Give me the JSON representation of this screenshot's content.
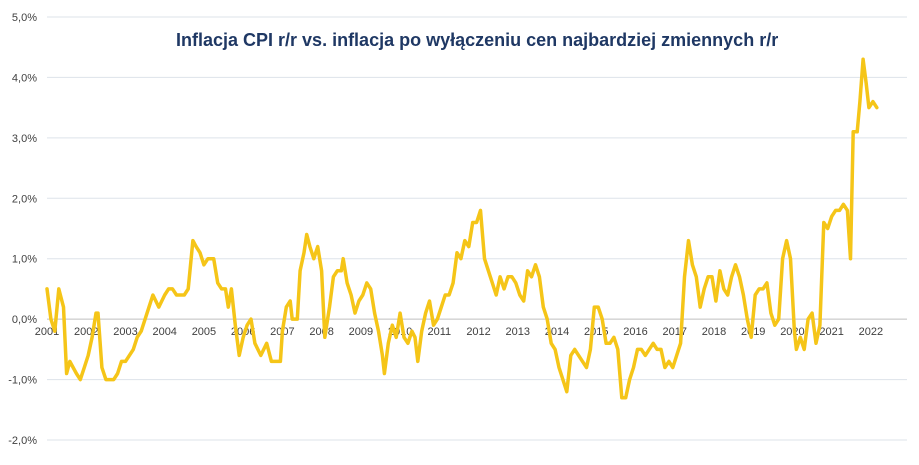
{
  "chart_data": {
    "type": "line",
    "title": "Inflacja CPI r/r vs. inflacja po wyłączeniu cen najbardziej  zmiennych r/r",
    "xlabel": "",
    "ylabel": "",
    "ylim": [
      -2.0,
      5.0
    ],
    "y_ticks": [
      -2.0,
      -1.0,
      0.0,
      1.0,
      2.0,
      3.0,
      4.0,
      5.0
    ],
    "y_tick_labels": [
      "-2,0%",
      "-1,0%",
      "0,0%",
      "1,0%",
      "2,0%",
      "3,0%",
      "4,0%",
      "5,0%"
    ],
    "x_range": [
      2001,
      2022.92
    ],
    "x_tick_labels": [
      "2001",
      "2002",
      "2003",
      "2004",
      "2005",
      "2006",
      "2007",
      "2008",
      "2009",
      "2010",
      "2011",
      "2012",
      "2013",
      "2014",
      "2015",
      "2016",
      "2017",
      "2018",
      "2019",
      "2020",
      "2021",
      "2022"
    ],
    "grid": true,
    "legend": "none",
    "line_color": "#f5c518",
    "series": [
      {
        "points": [
          [
            2001.0,
            0.5
          ],
          [
            2001.1,
            0.0
          ],
          [
            2001.2,
            -0.2
          ],
          [
            2001.3,
            0.5
          ],
          [
            2001.42,
            0.2
          ],
          [
            2001.5,
            -0.9
          ],
          [
            2001.58,
            -0.7
          ],
          [
            2001.75,
            -0.9
          ],
          [
            2001.85,
            -1.0
          ],
          [
            2001.95,
            -0.8
          ],
          [
            2002.05,
            -0.6
          ],
          [
            2002.15,
            -0.3
          ],
          [
            2002.25,
            0.1
          ],
          [
            2002.3,
            0.1
          ],
          [
            2002.4,
            -0.8
          ],
          [
            2002.5,
            -1.0
          ],
          [
            2002.6,
            -1.0
          ],
          [
            2002.7,
            -1.0
          ],
          [
            2002.8,
            -0.9
          ],
          [
            2002.9,
            -0.7
          ],
          [
            2003.0,
            -0.7
          ],
          [
            2003.1,
            -0.6
          ],
          [
            2003.2,
            -0.5
          ],
          [
            2003.3,
            -0.3
          ],
          [
            2003.4,
            -0.2
          ],
          [
            2003.5,
            0.0
          ],
          [
            2003.6,
            0.2
          ],
          [
            2003.7,
            0.4
          ],
          [
            2003.85,
            0.2
          ],
          [
            2004.0,
            0.4
          ],
          [
            2004.1,
            0.5
          ],
          [
            2004.2,
            0.5
          ],
          [
            2004.3,
            0.4
          ],
          [
            2004.4,
            0.4
          ],
          [
            2004.5,
            0.4
          ],
          [
            2004.6,
            0.5
          ],
          [
            2004.72,
            1.3
          ],
          [
            2004.8,
            1.2
          ],
          [
            2004.9,
            1.1
          ],
          [
            2005.0,
            0.9
          ],
          [
            2005.1,
            1.0
          ],
          [
            2005.2,
            1.0
          ],
          [
            2005.25,
            1.0
          ],
          [
            2005.35,
            0.6
          ],
          [
            2005.45,
            0.5
          ],
          [
            2005.55,
            0.5
          ],
          [
            2005.62,
            0.2
          ],
          [
            2005.7,
            0.5
          ],
          [
            2005.8,
            -0.1
          ],
          [
            2005.9,
            -0.6
          ],
          [
            2006.0,
            -0.3
          ],
          [
            2006.1,
            -0.1
          ],
          [
            2006.2,
            0.0
          ],
          [
            2006.3,
            -0.4
          ],
          [
            2006.45,
            -0.6
          ],
          [
            2006.6,
            -0.4
          ],
          [
            2006.72,
            -0.7
          ],
          [
            2006.85,
            -0.7
          ],
          [
            2006.95,
            -0.7
          ],
          [
            2007.0,
            -0.2
          ],
          [
            2007.1,
            0.2
          ],
          [
            2007.2,
            0.3
          ],
          [
            2007.25,
            0.0
          ],
          [
            2007.38,
            0.0
          ],
          [
            2007.45,
            0.8
          ],
          [
            2007.55,
            1.1
          ],
          [
            2007.62,
            1.4
          ],
          [
            2007.7,
            1.2
          ],
          [
            2007.8,
            1.0
          ],
          [
            2007.9,
            1.2
          ],
          [
            2008.0,
            0.8
          ],
          [
            2008.08,
            -0.3
          ],
          [
            2008.2,
            0.2
          ],
          [
            2008.3,
            0.7
          ],
          [
            2008.4,
            0.8
          ],
          [
            2008.5,
            0.8
          ],
          [
            2008.55,
            1.0
          ],
          [
            2008.65,
            0.6
          ],
          [
            2008.75,
            0.4
          ],
          [
            2008.85,
            0.1
          ],
          [
            2008.95,
            0.3
          ],
          [
            2009.05,
            0.4
          ],
          [
            2009.15,
            0.6
          ],
          [
            2009.25,
            0.5
          ],
          [
            2009.35,
            0.1
          ],
          [
            2009.45,
            -0.2
          ],
          [
            2009.55,
            -0.6
          ],
          [
            2009.6,
            -0.9
          ],
          [
            2009.7,
            -0.4
          ],
          [
            2009.8,
            -0.1
          ],
          [
            2009.9,
            -0.3
          ],
          [
            2010.0,
            0.1
          ],
          [
            2010.1,
            -0.3
          ],
          [
            2010.2,
            -0.4
          ],
          [
            2010.3,
            -0.2
          ],
          [
            2010.38,
            -0.3
          ],
          [
            2010.45,
            -0.7
          ],
          [
            2010.55,
            -0.2
          ],
          [
            2010.65,
            0.1
          ],
          [
            2010.75,
            0.3
          ],
          [
            2010.85,
            -0.1
          ],
          [
            2010.95,
            0.0
          ],
          [
            2011.05,
            0.2
          ],
          [
            2011.15,
            0.4
          ],
          [
            2011.25,
            0.4
          ],
          [
            2011.35,
            0.6
          ],
          [
            2011.45,
            1.1
          ],
          [
            2011.55,
            1.0
          ],
          [
            2011.65,
            1.3
          ],
          [
            2011.75,
            1.2
          ],
          [
            2011.85,
            1.6
          ],
          [
            2011.95,
            1.6
          ],
          [
            2012.05,
            1.8
          ],
          [
            2012.15,
            1.0
          ],
          [
            2012.25,
            0.8
          ],
          [
            2012.35,
            0.6
          ],
          [
            2012.45,
            0.4
          ],
          [
            2012.55,
            0.7
          ],
          [
            2012.65,
            0.5
          ],
          [
            2012.75,
            0.7
          ],
          [
            2012.85,
            0.7
          ],
          [
            2012.95,
            0.6
          ],
          [
            2013.05,
            0.4
          ],
          [
            2013.15,
            0.3
          ],
          [
            2013.25,
            0.8
          ],
          [
            2013.35,
            0.7
          ],
          [
            2013.45,
            0.9
          ],
          [
            2013.55,
            0.7
          ],
          [
            2013.65,
            0.2
          ],
          [
            2013.75,
            0.0
          ],
          [
            2013.85,
            -0.4
          ],
          [
            2013.95,
            -0.5
          ],
          [
            2014.05,
            -0.8
          ],
          [
            2014.15,
            -1.0
          ],
          [
            2014.25,
            -1.2
          ],
          [
            2014.35,
            -0.6
          ],
          [
            2014.45,
            -0.5
          ],
          [
            2014.55,
            -0.6
          ],
          [
            2014.65,
            -0.7
          ],
          [
            2014.75,
            -0.8
          ],
          [
            2014.85,
            -0.5
          ],
          [
            2014.95,
            0.2
          ],
          [
            2015.05,
            0.2
          ],
          [
            2015.15,
            0.0
          ],
          [
            2015.25,
            -0.4
          ],
          [
            2015.35,
            -0.4
          ],
          [
            2015.45,
            -0.3
          ],
          [
            2015.55,
            -0.5
          ],
          [
            2015.65,
            -1.3
          ],
          [
            2015.75,
            -1.3
          ],
          [
            2015.85,
            -1.0
          ],
          [
            2015.95,
            -0.8
          ],
          [
            2016.05,
            -0.5
          ],
          [
            2016.15,
            -0.5
          ],
          [
            2016.25,
            -0.6
          ],
          [
            2016.35,
            -0.5
          ],
          [
            2016.45,
            -0.4
          ],
          [
            2016.55,
            -0.5
          ],
          [
            2016.65,
            -0.5
          ],
          [
            2016.75,
            -0.8
          ],
          [
            2016.85,
            -0.7
          ],
          [
            2016.95,
            -0.8
          ],
          [
            2017.05,
            -0.6
          ],
          [
            2017.15,
            -0.4
          ],
          [
            2017.25,
            0.7
          ],
          [
            2017.35,
            1.3
          ],
          [
            2017.45,
            0.9
          ],
          [
            2017.55,
            0.7
          ],
          [
            2017.65,
            0.2
          ],
          [
            2017.75,
            0.5
          ],
          [
            2017.85,
            0.7
          ],
          [
            2017.95,
            0.7
          ],
          [
            2018.05,
            0.3
          ],
          [
            2018.15,
            0.8
          ],
          [
            2018.25,
            0.5
          ],
          [
            2018.35,
            0.4
          ],
          [
            2018.45,
            0.7
          ],
          [
            2018.55,
            0.9
          ],
          [
            2018.65,
            0.7
          ],
          [
            2018.75,
            0.4
          ],
          [
            2018.85,
            0.0
          ],
          [
            2018.95,
            -0.3
          ],
          [
            2019.05,
            0.4
          ],
          [
            2019.15,
            0.5
          ],
          [
            2019.25,
            0.5
          ],
          [
            2019.35,
            0.6
          ],
          [
            2019.45,
            0.1
          ],
          [
            2019.55,
            -0.1
          ],
          [
            2019.65,
            0.0
          ],
          [
            2019.75,
            1.0
          ],
          [
            2019.85,
            1.3
          ],
          [
            2019.95,
            1.0
          ],
          [
            2020.05,
            -0.2
          ],
          [
            2020.1,
            -0.5
          ],
          [
            2020.2,
            -0.3
          ],
          [
            2020.3,
            -0.5
          ],
          [
            2020.4,
            0.0
          ],
          [
            2020.5,
            0.1
          ],
          [
            2020.6,
            -0.4
          ],
          [
            2020.7,
            -0.1
          ],
          [
            2020.8,
            1.6
          ],
          [
            2020.9,
            1.5
          ],
          [
            2021.0,
            1.7
          ],
          [
            2021.1,
            1.8
          ],
          [
            2021.2,
            1.8
          ],
          [
            2021.3,
            1.9
          ],
          [
            2021.4,
            1.8
          ],
          [
            2021.48,
            1.0
          ],
          [
            2021.55,
            3.1
          ],
          [
            2021.65,
            3.1
          ],
          [
            2021.72,
            3.6
          ],
          [
            2021.8,
            4.3
          ],
          [
            2021.88,
            3.9
          ],
          [
            2021.95,
            3.5
          ],
          [
            2022.05,
            3.6
          ],
          [
            2022.15,
            3.5
          ]
        ]
      }
    ]
  }
}
